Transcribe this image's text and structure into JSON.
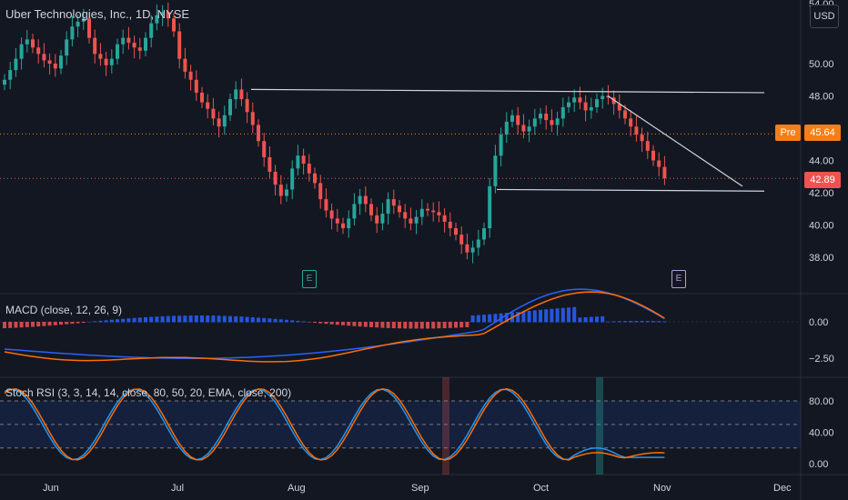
{
  "header": {
    "title": "Uber Technologies, Inc., 1D, NYSE",
    "currency": "USD"
  },
  "price_axis": {
    "ticks": [
      "54.00",
      "50.00",
      "48.00",
      "46.00",
      "44.00",
      "42.00",
      "40.00",
      "38.00"
    ]
  },
  "badges": {
    "pre_label": "Pre",
    "pre_price": "45.64",
    "last_price": "42.89",
    "earnings_1": "E",
    "earnings_2": "E"
  },
  "macd": {
    "label": "MACD (close, 12, 26, 9)",
    "ticks": [
      "0.00",
      "−2.50"
    ]
  },
  "stoch": {
    "label": "Stoch RSI (3, 3, 14, 14, close, 80, 50, 20, EMA, close, 200)",
    "ticks": [
      "80.00",
      "40.00",
      "0.00"
    ]
  },
  "time_axis": {
    "labels": [
      "Jun",
      "Jul",
      "Aug",
      "Sep",
      "Oct",
      "Nov",
      "Dec"
    ]
  },
  "colors": {
    "background": "#131722",
    "up": "#26a69a",
    "down": "#ef5350",
    "macd_line": "#2962ff",
    "signal_line": "#ff6d00",
    "pre_badge": "#f57f17",
    "last_badge": "#ef5350",
    "trendline": "#d1d4dc"
  },
  "chart_data": [
    {
      "type": "candlestick",
      "title": "Uber Technologies, Inc., 1D, NYSE",
      "ylim": [
        37,
        55
      ],
      "x_labels": [
        "Jun",
        "Jul",
        "Aug",
        "Sep",
        "Oct",
        "Nov",
        "Dec"
      ],
      "close_series": [
        49,
        49.6,
        50.3,
        51.2,
        51.5,
        51.0,
        50.6,
        50.2,
        50.0,
        49.7,
        50.5,
        51.5,
        52.3,
        52.6,
        52.8,
        51.6,
        50.6,
        50.3,
        49.9,
        50.3,
        51.2,
        51.6,
        51.3,
        51.0,
        50.8,
        51.6,
        52.5,
        53.0,
        53.2,
        52.8,
        52.0,
        50.3,
        49.5,
        49.0,
        48.2,
        47.6,
        47.2,
        46.6,
        46.1,
        46.8,
        47.8,
        48.4,
        47.8,
        47.0,
        46.2,
        45.2,
        44.2,
        43.3,
        42.5,
        41.8,
        42.2,
        43.5,
        44.3,
        43.8,
        43.2,
        42.6,
        41.6,
        40.9,
        40.4,
        40.1,
        39.8,
        40.4,
        41.3,
        41.8,
        41.3,
        40.6,
        40.1,
        40.7,
        41.6,
        41.2,
        40.8,
        40.4,
        40.1,
        40.5,
        41.0,
        40.9,
        40.8,
        40.6,
        40.2,
        39.8,
        39.4,
        38.8,
        38.3,
        38.6,
        39.1,
        39.8,
        42.4,
        44.3,
        45.6,
        46.4,
        46.8,
        46.2,
        45.8,
        46.1,
        46.6,
        46.9,
        46.5,
        46.2,
        46.6,
        47.3,
        47.6,
        47.9,
        47.6,
        47.1,
        47.3,
        47.8,
        48.0,
        47.9,
        47.5,
        47.1,
        46.6,
        46.1,
        45.6,
        45.2,
        44.6,
        44.0,
        43.6,
        42.9
      ],
      "trendlines": [
        {
          "from": [
            "Jul",
            48.4
          ],
          "to": [
            "Nov",
            48.2
          ]
        },
        {
          "from": [
            "Sep",
            42.2
          ],
          "to": [
            "Nov",
            42.1
          ]
        },
        {
          "from": [
            "Oct",
            48.0
          ],
          "to": [
            "Nov",
            42.4
          ]
        }
      ],
      "pre_market_price": 45.64,
      "last_price": 42.89
    },
    {
      "type": "histogram+line",
      "title": "MACD (close, 12, 26, 9)",
      "yticks": [
        0.0,
        -2.5
      ],
      "series": [
        "MACD",
        "Signal",
        "Histogram"
      ]
    },
    {
      "type": "line",
      "title": "Stoch RSI (3, 3, 14, 14, close, 80, 50, 20, EMA, close, 200)",
      "ylim": [
        0,
        100
      ],
      "yticks": [
        80,
        40,
        0
      ],
      "bands": [
        80,
        50,
        20
      ],
      "series": [
        "K",
        "D"
      ]
    }
  ]
}
